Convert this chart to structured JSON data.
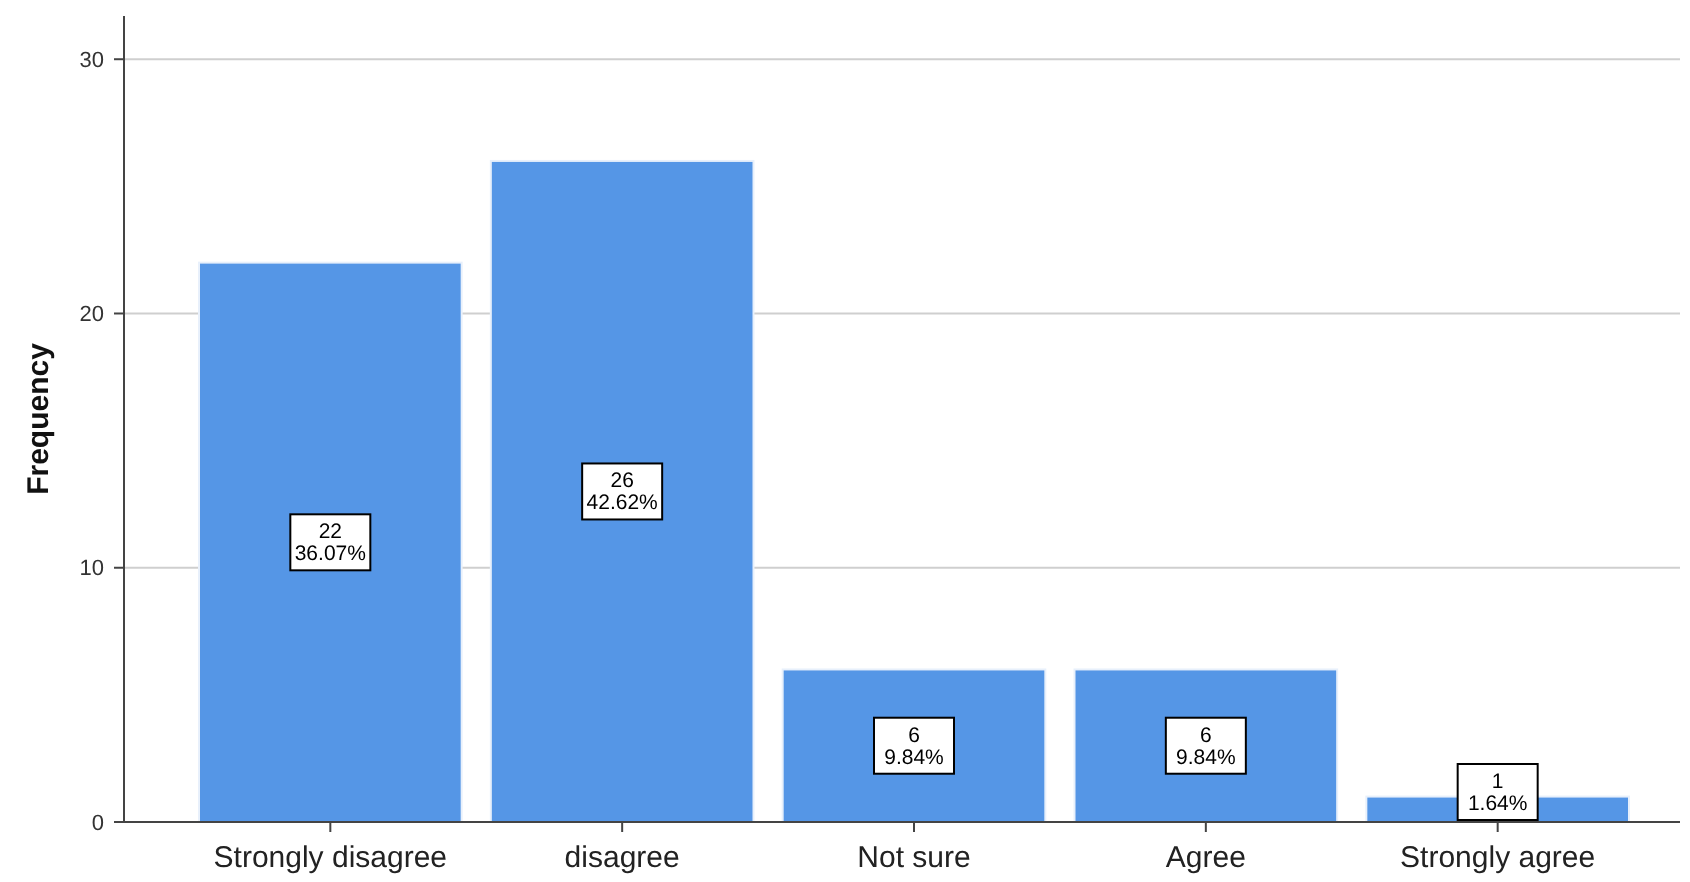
{
  "chart_data": {
    "type": "bar",
    "ylabel": "Frequency",
    "categories": [
      "Strongly disagree",
      "disagree",
      "Not sure",
      "Agree",
      "Strongly agree"
    ],
    "values": [
      22,
      26,
      6,
      6,
      1
    ],
    "value_labels": [
      "22\n36.07%",
      "26\n42.62%",
      "6\n9.84%",
      "6\n9.84%",
      "1\n1.64%"
    ],
    "color": "#5596e6",
    "ylim": [
      0,
      31.7
    ],
    "yticks": [
      0,
      10,
      20,
      30
    ],
    "grid": "y"
  }
}
